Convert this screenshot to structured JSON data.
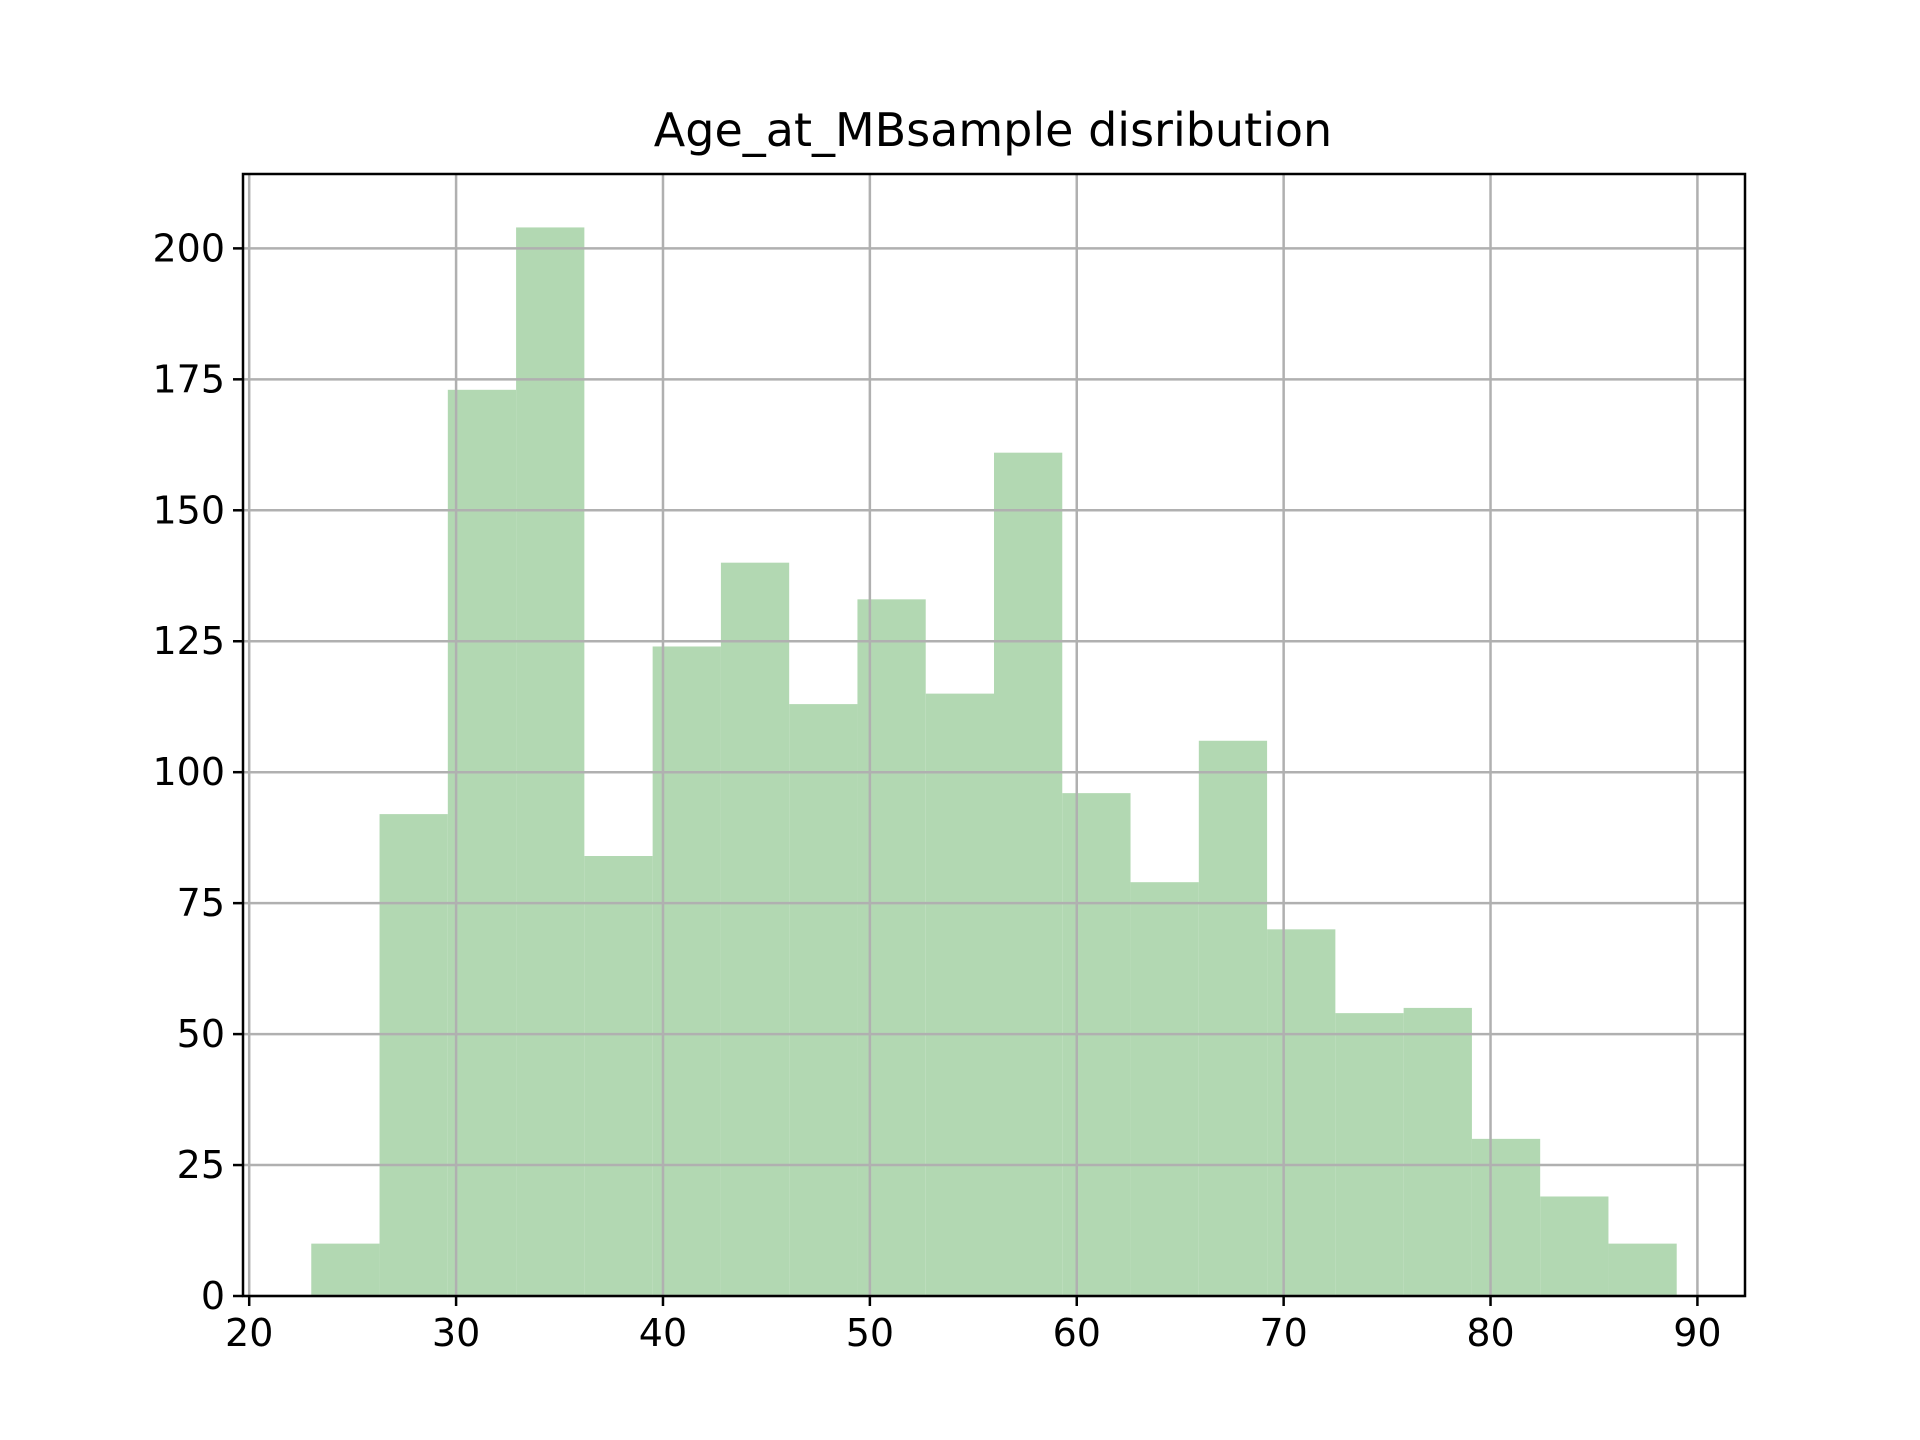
{
  "chart_data": {
    "type": "bar",
    "title": "Age_at_MBsample disribution",
    "xlabel": "",
    "ylabel": "",
    "bin_edges": [
      23.0,
      26.3,
      29.6,
      32.9,
      36.2,
      39.5,
      42.8,
      46.1,
      49.4,
      52.7,
      56.0,
      59.3,
      62.6,
      65.9,
      69.2,
      72.5,
      75.8,
      79.1,
      82.4,
      85.7,
      89.0
    ],
    "values": [
      10,
      92,
      173,
      204,
      84,
      124,
      140,
      113,
      133,
      115,
      161,
      96,
      79,
      106,
      70,
      54,
      55,
      30,
      19,
      10
    ],
    "xlim": [
      19.7,
      92.3
    ],
    "ylim": [
      0,
      214.2
    ],
    "xticks": [
      20,
      30,
      40,
      50,
      60,
      70,
      80,
      90
    ],
    "yticks": [
      0,
      25,
      50,
      75,
      100,
      125,
      150,
      175,
      200
    ],
    "grid": true,
    "bar_color": "#b2d8b2"
  }
}
